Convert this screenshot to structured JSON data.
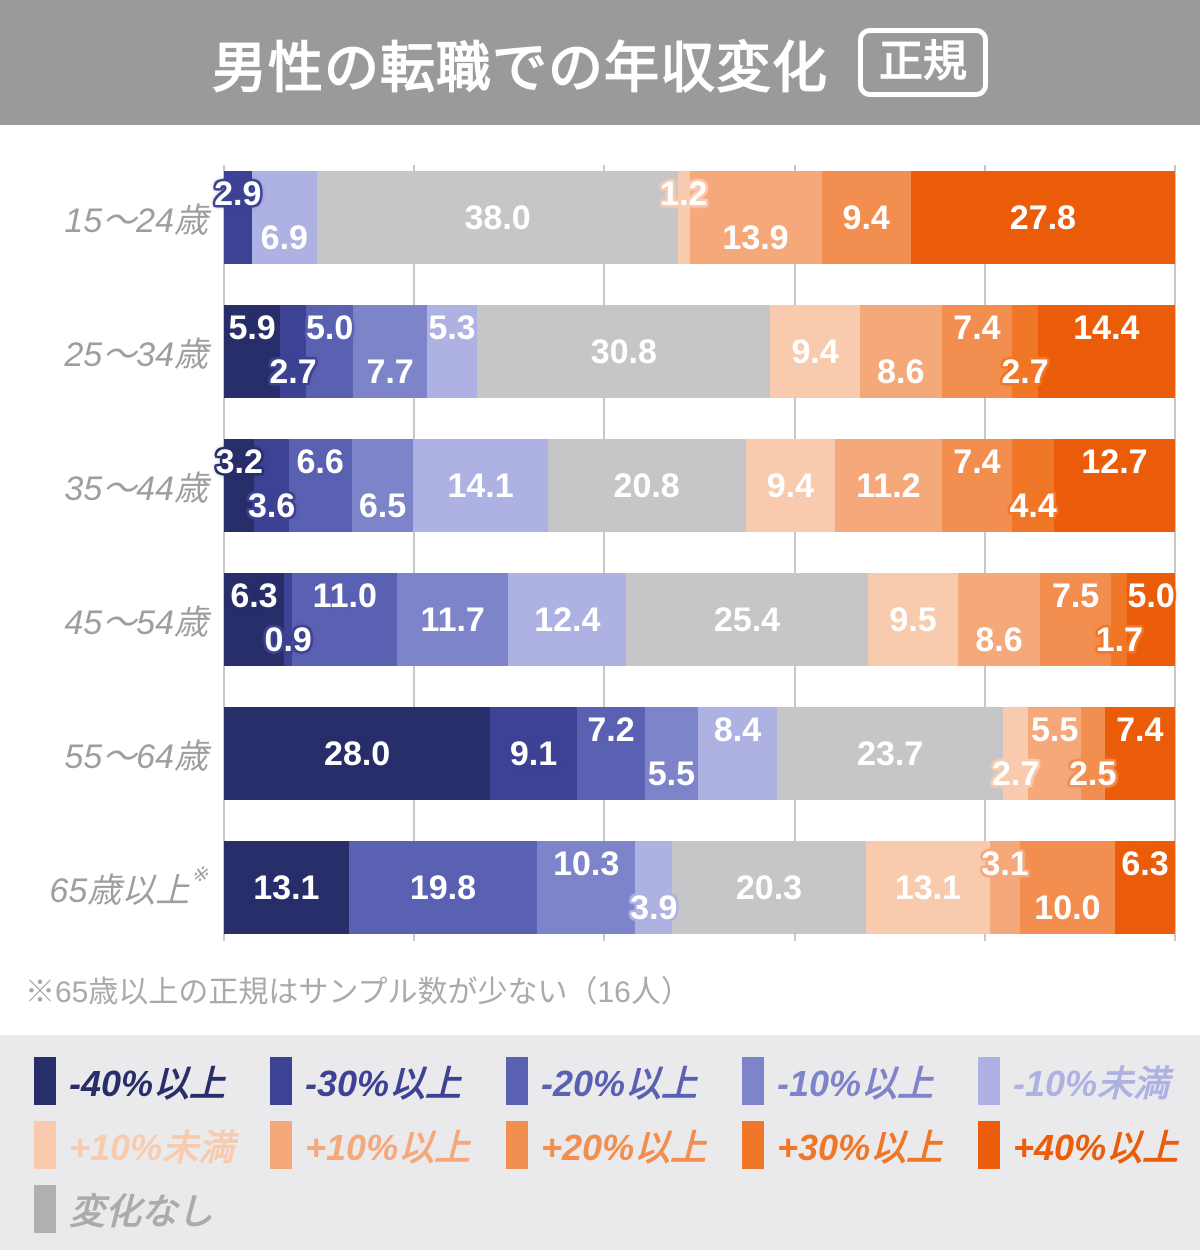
{
  "header": {
    "title": "男性の転職での年収変化",
    "badge": "正規",
    "bg_color": "#9a9a9a"
  },
  "chart_data": {
    "type": "bar",
    "variant": "horizontal-stacked-percent",
    "unit": "%",
    "xlim": [
      0,
      100
    ],
    "gridline_step": 20,
    "grid": true,
    "categories": [
      {
        "id": "m40",
        "label": "-40%以上",
        "color": "#282e69"
      },
      {
        "id": "m30",
        "label": "-30%以上",
        "color": "#3d4294"
      },
      {
        "id": "m20",
        "label": "-20%以上",
        "color": "#5a61b2"
      },
      {
        "id": "m10",
        "label": "-10%以上",
        "color": "#7e84c9"
      },
      {
        "id": "m10u",
        "label": "-10%未満",
        "color": "#aeb2e3"
      },
      {
        "id": "nochange",
        "label": "変化なし",
        "color": "#c6c6c8",
        "legend_color": "#b0b0b3",
        "legend_text_color": "#ababab"
      },
      {
        "id": "p10u",
        "label": "+10%未満",
        "color": "#f8cbae"
      },
      {
        "id": "p10",
        "label": "+10%以上",
        "color": "#f5a87a"
      },
      {
        "id": "p20",
        "label": "+20%以上",
        "color": "#f28e4f"
      },
      {
        "id": "p30",
        "label": "+30%以上",
        "color": "#f07727"
      },
      {
        "id": "p40",
        "label": "+40%以上",
        "color": "#eb5d0a"
      }
    ],
    "rows": [
      {
        "label": "15〜24歳",
        "segments": [
          {
            "category": "m30",
            "value": 2.9,
            "label_pos": "up"
          },
          {
            "category": "m10u",
            "value": 6.9,
            "label_pos": "down"
          },
          {
            "category": "nochange",
            "value": 38.0,
            "label_pos": "center"
          },
          {
            "category": "p10u",
            "value": 1.2,
            "label_pos": "up"
          },
          {
            "category": "p10",
            "value": 13.9,
            "label_pos": "down"
          },
          {
            "category": "p20",
            "value": 9.4,
            "label_pos": "center"
          },
          {
            "category": "p40",
            "value": 27.8,
            "label_pos": "center"
          }
        ]
      },
      {
        "label": "25〜34歳",
        "segments": [
          {
            "category": "m40",
            "value": 5.9,
            "label_pos": "up"
          },
          {
            "category": "m30",
            "value": 2.7,
            "label_pos": "down"
          },
          {
            "category": "m20",
            "value": 5.0,
            "label_pos": "up"
          },
          {
            "category": "m10",
            "value": 7.7,
            "label_pos": "down"
          },
          {
            "category": "m10u",
            "value": 5.3,
            "label_pos": "up"
          },
          {
            "category": "nochange",
            "value": 30.8,
            "label_pos": "center"
          },
          {
            "category": "p10u",
            "value": 9.4,
            "label_pos": "center"
          },
          {
            "category": "p10",
            "value": 8.6,
            "label_pos": "down"
          },
          {
            "category": "p20",
            "value": 7.4,
            "label_pos": "up"
          },
          {
            "category": "p30",
            "value": 2.7,
            "label_pos": "down"
          },
          {
            "category": "p40",
            "value": 14.4,
            "label_pos": "up"
          }
        ]
      },
      {
        "label": "35〜44歳",
        "segments": [
          {
            "category": "m40",
            "value": 3.2,
            "label_pos": "up"
          },
          {
            "category": "m30",
            "value": 3.6,
            "label_pos": "down"
          },
          {
            "category": "m20",
            "value": 6.6,
            "label_pos": "up"
          },
          {
            "category": "m10",
            "value": 6.5,
            "label_pos": "down"
          },
          {
            "category": "m10u",
            "value": 14.1,
            "label_pos": "center"
          },
          {
            "category": "nochange",
            "value": 20.8,
            "label_pos": "center"
          },
          {
            "category": "p10u",
            "value": 9.4,
            "label_pos": "center"
          },
          {
            "category": "p10",
            "value": 11.2,
            "label_pos": "center"
          },
          {
            "category": "p20",
            "value": 7.4,
            "label_pos": "up"
          },
          {
            "category": "p30",
            "value": 4.4,
            "label_pos": "down"
          },
          {
            "category": "p40",
            "value": 12.7,
            "label_pos": "up"
          }
        ]
      },
      {
        "label": "45〜54歳",
        "segments": [
          {
            "category": "m40",
            "value": 6.3,
            "label_pos": "up"
          },
          {
            "category": "m30",
            "value": 0.9,
            "label_pos": "down"
          },
          {
            "category": "m20",
            "value": 11.0,
            "label_pos": "up"
          },
          {
            "category": "m10",
            "value": 11.7,
            "label_pos": "center"
          },
          {
            "category": "m10u",
            "value": 12.4,
            "label_pos": "center"
          },
          {
            "category": "nochange",
            "value": 25.4,
            "label_pos": "center"
          },
          {
            "category": "p10u",
            "value": 9.5,
            "label_pos": "center"
          },
          {
            "category": "p10",
            "value": 8.6,
            "label_pos": "down"
          },
          {
            "category": "p20",
            "value": 7.5,
            "label_pos": "up"
          },
          {
            "category": "p30",
            "value": 1.7,
            "label_pos": "down"
          },
          {
            "category": "p40",
            "value": 5.0,
            "label_pos": "up"
          }
        ]
      },
      {
        "label": "55〜64歳",
        "segments": [
          {
            "category": "m40",
            "value": 28.0,
            "label_pos": "center"
          },
          {
            "category": "m30",
            "value": 9.1,
            "label_pos": "center"
          },
          {
            "category": "m20",
            "value": 7.2,
            "label_pos": "up"
          },
          {
            "category": "m10",
            "value": 5.5,
            "label_pos": "down"
          },
          {
            "category": "m10u",
            "value": 8.4,
            "label_pos": "up"
          },
          {
            "category": "nochange",
            "value": 23.7,
            "label_pos": "center"
          },
          {
            "category": "p10u",
            "value": 2.7,
            "label_pos": "down"
          },
          {
            "category": "p10",
            "value": 5.5,
            "label_pos": "up"
          },
          {
            "category": "p20",
            "value": 2.5,
            "label_pos": "down"
          },
          {
            "category": "p40",
            "value": 7.4,
            "label_pos": "up"
          }
        ]
      },
      {
        "label": "65歳以上",
        "sup": "※",
        "segments": [
          {
            "category": "m40",
            "value": 13.1,
            "label_pos": "center"
          },
          {
            "category": "m20",
            "value": 19.8,
            "label_pos": "center"
          },
          {
            "category": "m10",
            "value": 10.3,
            "label_pos": "up"
          },
          {
            "category": "m10u",
            "value": 3.9,
            "label_pos": "down"
          },
          {
            "category": "nochange",
            "value": 20.3,
            "label_pos": "center"
          },
          {
            "category": "p10u",
            "value": 13.1,
            "label_pos": "center"
          },
          {
            "category": "p10",
            "value": 3.1,
            "label_pos": "up"
          },
          {
            "category": "p20",
            "value": 10.0,
            "label_pos": "down"
          },
          {
            "category": "p40",
            "value": 6.3,
            "label_pos": "up"
          }
        ]
      }
    ]
  },
  "footnote": "※65歳以上の正規はサンプル数が少ない（16人）",
  "legend": {
    "bg_color": "#eaeaec",
    "rows": [
      [
        "m40",
        "m30",
        "m20",
        "m10",
        "m10u"
      ],
      [
        "p10u",
        "p10",
        "p20",
        "p30",
        "p40"
      ],
      [
        "nochange"
      ]
    ]
  }
}
